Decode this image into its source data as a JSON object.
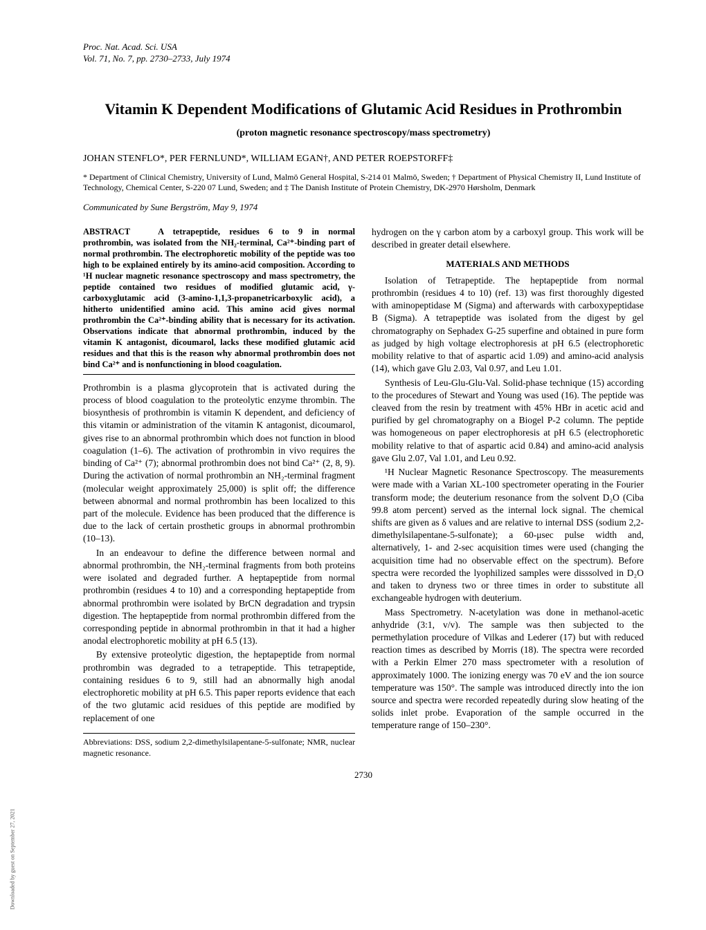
{
  "journal": {
    "line1": "Proc. Nat. Acad. Sci. USA",
    "line2": "Vol. 71, No. 7, pp. 2730–2733, July 1974"
  },
  "title": "Vitamin K Dependent Modifications of Glutamic Acid Residues in Prothrombin",
  "subtitle": "(proton magnetic resonance spectroscopy/mass spectrometry)",
  "authors": "JOHAN STENFLO*, PER FERNLUND*, WILLIAM EGAN†, AND PETER ROEPSTORFF‡",
  "affiliations": "* Department of Clinical Chemistry, University of Lund, Malmö General Hospital, S-214 01 Malmö, Sweden; † Department of Physical Chemistry II, Lund Institute of Technology, Chemical Center, S-220 07 Lund, Sweden; and ‡ The Danish Institute of Protein Chemistry, DK-2970 Hørsholm, Denmark",
  "communicated": "Communicated by Sune Bergström, May 9, 1974",
  "abstract_label": "ABSTRACT",
  "abstract": "A tetrapeptide, residues 6 to 9 in normal prothrombin, was isolated from the NH₂-terminal, Ca²⁺-binding part of normal prothrombin. The electrophoretic mobility of the peptide was too high to be explained entirely by its amino-acid composition. According to ¹H nuclear magnetic resonance spectroscopy and mass spectrometry, the peptide contained two residues of modified glutamic acid, γ-carboxyglutamic acid (3-amino-1,1,3-propanetricarboxylic acid), a hitherto unidentified amino acid. This amino acid gives normal prothrombin the Ca²⁺-binding ability that is necessary for its activation. Observations indicate that abnormal prothrombin, induced by the vitamin K antagonist, dicoumarol, lacks these modified glutamic acid residues and that this is the reason why abnormal prothrombin does not bind Ca²⁺ and is nonfunctioning in blood coagulation.",
  "left": {
    "p1": "Prothrombin is a plasma glycoprotein that is activated during the process of blood coagulation to the proteolytic enzyme thrombin. The biosynthesis of prothrombin is vitamin K dependent, and deficiency of this vitamin or administration of the vitamin K antagonist, dicoumarol, gives rise to an abnormal prothrombin which does not function in blood coagulation (1–6). The activation of prothrombin in vivo requires the binding of Ca²⁺ (7); abnormal prothrombin does not bind Ca²⁺ (2, 8, 9). During the activation of normal prothrombin an NH₂-terminal fragment (molecular weight approximately 25,000) is split off; the difference between abnormal and normal prothrombin has been localized to this part of the molecule. Evidence has been produced that the difference is due to the lack of certain prosthetic groups in abnormal prothrombin (10–13).",
    "p2": "In an endeavour to define the difference between normal and abnormal prothrombin, the NH₂-terminal fragments from both proteins were isolated and degraded further. A heptapeptide from normal prothrombin (residues 4 to 10) and a corresponding heptapeptide from abnormal prothrombin were isolated by BrCN degradation and trypsin digestion. The heptapeptide from normal prothrombin differed from the corresponding peptide in abnormal prothrombin in that it had a higher anodal electrophoretic mobility at pH 6.5 (13).",
    "p3": "By extensive proteolytic digestion, the heptapeptide from normal prothrombin was degraded to a tetrapeptide. This tetrapeptide, containing residues 6 to 9, still had an abnormally high anodal electrophoretic mobility at pH 6.5. This paper reports evidence that each of the two glutamic acid residues of this peptide are modified by replacement of one",
    "footnote": "Abbreviations: DSS, sodium 2,2-dimethylsilapentane-5-sulfonate; NMR, nuclear magnetic resonance."
  },
  "right": {
    "p0": "hydrogen on the γ carbon atom by a carboxyl group. This work will be described in greater detail elsewhere.",
    "section": "MATERIALS AND METHODS",
    "p1": "Isolation of Tetrapeptide. The heptapeptide from normal prothrombin (residues 4 to 10) (ref. 13) was first thoroughly digested with aminopeptidase M (Sigma) and afterwards with carboxypeptidase B (Sigma). A tetrapeptide was isolated from the digest by gel chromatography on Sephadex G-25 superfine and obtained in pure form as judged by high voltage electrophoresis at pH 6.5 (electrophoretic mobility relative to that of aspartic acid 1.09) and amino-acid analysis (14), which gave Glu 2.03, Val 0.97, and Leu 1.01.",
    "p2": "Synthesis of Leu-Glu-Glu-Val. Solid-phase technique (15) according to the procedures of Stewart and Young was used (16). The peptide was cleaved from the resin by treatment with 45% HBr in acetic acid and purified by gel chromatography on a Biogel P-2 column. The peptide was homogeneous on paper electrophoresis at pH 6.5 (electrophoretic mobility relative to that of aspartic acid 0.84) and amino-acid analysis gave Glu 2.07, Val 1.01, and Leu 0.92.",
    "p3": "¹H Nuclear Magnetic Resonance Spectroscopy. The measurements were made with a Varian XL-100 spectrometer operating in the Fourier transform mode; the deuterium resonance from the solvent D₂O (Ciba 99.8 atom percent) served as the internal lock signal. The chemical shifts are given as δ values and are relative to internal DSS (sodium 2,2-dimethylsilapentane-5-sulfonate); a 60-μsec pulse width and, alternatively, 1- and 2-sec acquisition times were used (changing the acquisition time had no observable effect on the spectrum). Before spectra were recorded the lyophilized samples were disssolved in D₂O and taken to dryness two or three times in order to substitute all exchangeable hydrogen with deuterium.",
    "p4": "Mass Spectrometry. N-acetylation was done in methanol-acetic anhydride (3:1, v/v). The sample was then subjected to the permethylation procedure of Vilkas and Lederer (17) but with reduced reaction times as described by Morris (18). The spectra were recorded with a Perkin Elmer 270 mass spectrometer with a resolution of approximately 1000. The ionizing energy was 70 eV and the ion source temperature was 150°. The sample was introduced directly into the ion source and spectra were recorded repeatedly during slow heating of the solids inlet probe. Evaporation of the sample occurred in the temperature range of 150–230°."
  },
  "pagenum": "2730",
  "sidetext": "Downloaded by guest on September 27, 2021"
}
